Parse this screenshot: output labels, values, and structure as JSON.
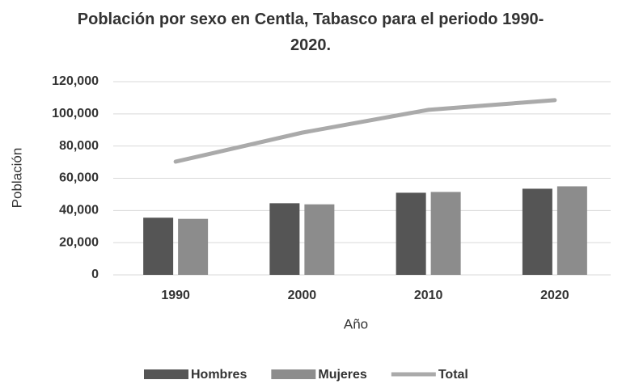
{
  "chart_data": {
    "type": "bar",
    "title": "Población por sexo en Centla, Tabasco para el periodo 1990-2020.",
    "x_label": "Año",
    "y_label": "Población",
    "categories": [
      "1990",
      "2000",
      "2010",
      "2020"
    ],
    "series": [
      {
        "name": "Hombres",
        "color": "#555555",
        "values": [
          35500,
          44500,
          51000,
          53500
        ]
      },
      {
        "name": "Mujeres",
        "color": "#8c8c8c",
        "values": [
          34800,
          43800,
          51500,
          55000
        ]
      },
      {
        "name": "Total",
        "type": "line",
        "color": "#aaaaaa",
        "values": [
          70300,
          88300,
          102500,
          108500
        ]
      }
    ],
    "ylim": [
      0,
      120000
    ],
    "yticks": [
      0,
      {
        "value": 20000,
        "label": "20,000"
      },
      {
        "value": 40000,
        "label": "40,000"
      },
      {
        "value": 60000,
        "label": "60,000"
      },
      {
        "value": 80000,
        "label": "80,000"
      },
      {
        "value": 100000,
        "label": "100,000"
      },
      {
        "value": 120000,
        "label": "120,000"
      }
    ],
    "grid": true,
    "legend": "bottom"
  }
}
